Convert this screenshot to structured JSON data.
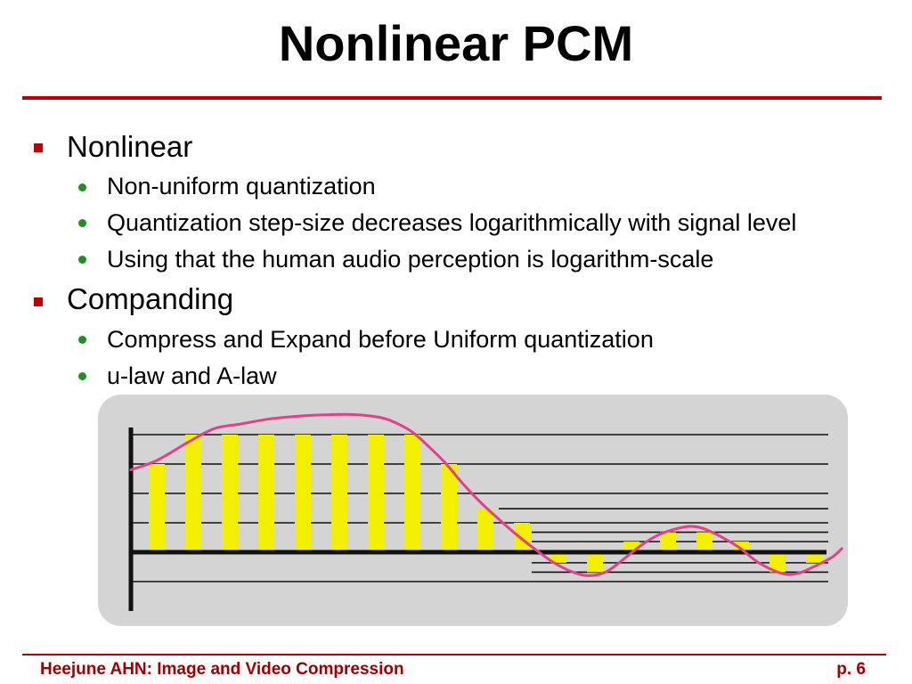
{
  "slide": {
    "title": "Nonlinear PCM",
    "bullets": [
      {
        "text": "Nonlinear",
        "items": [
          "Non-uniform quantization",
          "Quantization step-size decreases logarithmically with signal level",
          "Using that the human audio perception is logarithm-scale"
        ]
      },
      {
        "text": "Companding",
        "items": [
          "Compress and Expand before Uniform quantization",
          "u-law and A-law"
        ]
      }
    ]
  },
  "footer": {
    "left": "Heejune AHN: Image and Video Compression",
    "right": "p. 6"
  },
  "icons": {
    "level1_bullet": "square-bullet",
    "level2_bullet": "dot-bullet"
  },
  "colors": {
    "accent": "#c00000",
    "bullet_dot": "#1f8f1f",
    "footer_text": "#a00000",
    "panel": "#d4d4d4",
    "sample_bar": "#f3ef00",
    "signal": "#e3408c",
    "level_line": "#111111"
  },
  "figure": {
    "uniform_levels": [
      1,
      0.75,
      0.5,
      0.25,
      0,
      -0.25
    ],
    "fine_levels": [
      0.37,
      0.17,
      0.09,
      -0.09,
      -0.17
    ],
    "samples": [
      0.75,
      1,
      1,
      1,
      1,
      1,
      1,
      1,
      0.75,
      0.37,
      0.25,
      -0.09,
      -0.17,
      0.09,
      0.17,
      0.17,
      0.09,
      -0.17,
      -0.09
    ],
    "signal": {
      "t": [
        -0.71,
        0,
        0.83,
        1.56,
        2.29,
        3.02,
        4.0,
        4.73,
        5.46,
        6.2,
        6.68,
        7.05,
        7.41,
        7.9,
        8.39,
        8.88,
        9.37,
        9.85,
        10.34,
        10.83,
        11.32,
        11.8,
        12.29,
        12.78,
        13.27,
        13.76,
        14.24,
        14.61,
        14.98,
        15.46,
        15.95,
        16.44,
        16.93,
        17.29,
        17.66,
        18.15,
        18.51,
        18.76
      ],
      "amplitude": [
        0.7,
        0.78,
        0.93,
        1.05,
        1.09,
        1.13,
        1.16,
        1.17,
        1.17,
        1.14,
        1.08,
        1.01,
        0.91,
        0.76,
        0.58,
        0.42,
        0.28,
        0.15,
        0.03,
        -0.08,
        -0.16,
        -0.2,
        -0.17,
        -0.06,
        0.06,
        0.15,
        0.2,
        0.22,
        0.2,
        0.13,
        0.04,
        -0.08,
        -0.16,
        -0.19,
        -0.17,
        -0.1,
        -0.04,
        0.03
      ]
    }
  }
}
